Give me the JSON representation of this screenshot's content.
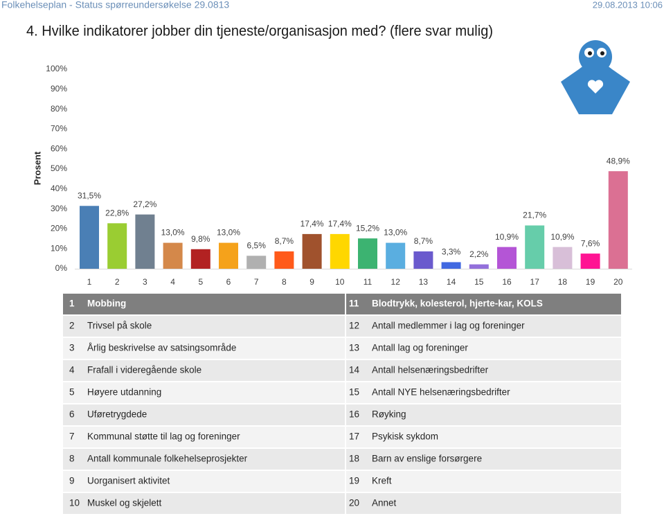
{
  "header": {
    "left": "Folkehelseplan - Status spørreundersøkelse 29.0813",
    "right": "29.08.2013 10:06"
  },
  "chart_data": {
    "type": "bar",
    "title": "4. Hvilke indikatorer jobber din tjeneste/organisasjon med? (flere svar mulig)",
    "y_label": "Prosent",
    "categories": [
      "1",
      "2",
      "3",
      "4",
      "5",
      "6",
      "7",
      "8",
      "9",
      "10",
      "11",
      "12",
      "13",
      "14",
      "15",
      "16",
      "17",
      "18",
      "19",
      "20"
    ],
    "values": [
      31.5,
      22.8,
      27.2,
      13.0,
      9.8,
      13.0,
      6.5,
      8.7,
      17.4,
      17.4,
      15.2,
      13.0,
      8.7,
      3.3,
      2.2,
      10.9,
      21.7,
      10.9,
      7.6,
      48.9
    ],
    "value_labels": [
      "31,5%",
      "22,8%",
      "27,2%",
      "13,0%",
      "9,8%",
      "13,0%",
      "6,5%",
      "8,7%",
      "17,4%",
      "17,4%",
      "15,2%",
      "13,0%",
      "8,7%",
      "3,3%",
      "2,2%",
      "10,9%",
      "21,7%",
      "10,9%",
      "7,6%",
      "48,9%"
    ],
    "colors": [
      "#4a7fb5",
      "#9acd32",
      "#708090",
      "#d4884a",
      "#b22222",
      "#f5a21b",
      "#b0b0b0",
      "#ff5a1a",
      "#a0522d",
      "#ffd700",
      "#3cb371",
      "#5aaee0",
      "#6a5acd",
      "#4169e1",
      "#9370db",
      "#b455d6",
      "#66cdaa",
      "#d8bfd8",
      "#ff1493",
      "#db7093"
    ],
    "ylim": [
      0,
      100
    ],
    "yticks": [
      {
        "value": 0,
        "label": "0%"
      },
      {
        "value": 10,
        "label": "10%"
      },
      {
        "value": 20,
        "label": "20%"
      },
      {
        "value": 30,
        "label": "30%"
      },
      {
        "value": 40,
        "label": "40%"
      },
      {
        "value": 50,
        "label": "50%"
      },
      {
        "value": 60,
        "label": "60%"
      },
      {
        "value": 70,
        "label": "70%"
      },
      {
        "value": 80,
        "label": "80%"
      },
      {
        "value": 90,
        "label": "90%"
      },
      {
        "value": 100,
        "label": "100%"
      }
    ],
    "grid": false
  },
  "table": {
    "rows": [
      [
        "1",
        "Mobbing",
        "11",
        "Blodtrykk, kolesterol, hjerte-kar, KOLS"
      ],
      [
        "2",
        "Trivsel på skole",
        "12",
        "Antall medlemmer i lag og foreninger"
      ],
      [
        "3",
        "Årlig beskrivelse av satsingsområde",
        "13",
        "Antall lag og foreninger"
      ],
      [
        "4",
        "Frafall i videregående skole",
        "14",
        "Antall helsenæringsbedrifter"
      ],
      [
        "5",
        "Høyere utdanning",
        "15",
        "Antall NYE helsenæringsbedrifter"
      ],
      [
        "6",
        "Uføretrygdede",
        "16",
        "Røyking"
      ],
      [
        "7",
        "Kommunal støtte til lag og foreninger",
        "17",
        "Psykisk sykdom"
      ],
      [
        "8",
        "Antall kommunale folkehelseprosjekter",
        "18",
        "Barn av enslige forsørgere"
      ],
      [
        "9",
        "Uorganisert aktivitet",
        "19",
        "Kreft"
      ],
      [
        "10",
        "Muskel og skjelett",
        "20",
        "Annet"
      ]
    ]
  }
}
